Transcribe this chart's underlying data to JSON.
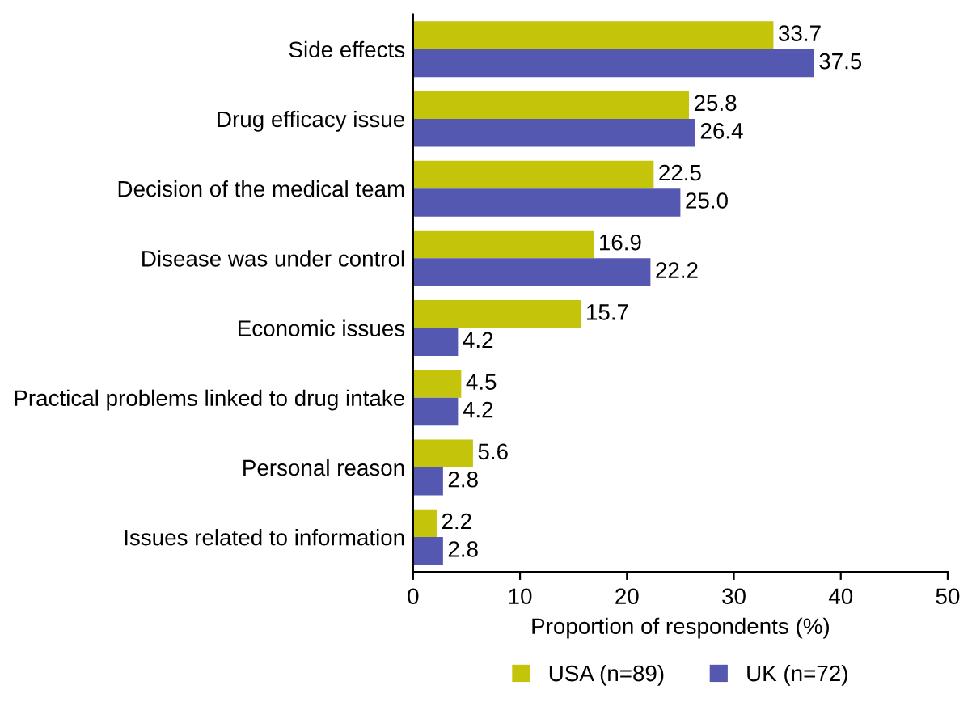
{
  "chart_data": {
    "type": "bar",
    "orientation": "horizontal",
    "xlabel": "Proportion of respondents (%)",
    "categories": [
      "Side effects",
      "Drug efficacy issue",
      "Decision of the medical team",
      "Disease was under control",
      "Economic issues",
      "Practical problems linked to drug intake",
      "Personal reason",
      "Issues related to information"
    ],
    "series": [
      {
        "name": "USA (n=89)",
        "color": "#c4c40a",
        "values": [
          33.7,
          25.8,
          22.5,
          16.9,
          15.7,
          4.5,
          5.6,
          2.2
        ]
      },
      {
        "name": "UK (n=72)",
        "color": "#5558b0",
        "values": [
          37.5,
          26.4,
          25.0,
          22.2,
          4.2,
          4.2,
          2.8,
          2.8
        ],
        "value_labels": [
          "37.5",
          "26.4",
          "25.0",
          "22.2",
          "4.2",
          "4.2",
          "2.8",
          "2.8"
        ]
      }
    ],
    "xlim": [
      0,
      50
    ],
    "xticks": [
      0,
      10,
      20,
      30,
      40,
      50
    ],
    "data_labels": true,
    "grid": false,
    "legend": "bottom"
  }
}
